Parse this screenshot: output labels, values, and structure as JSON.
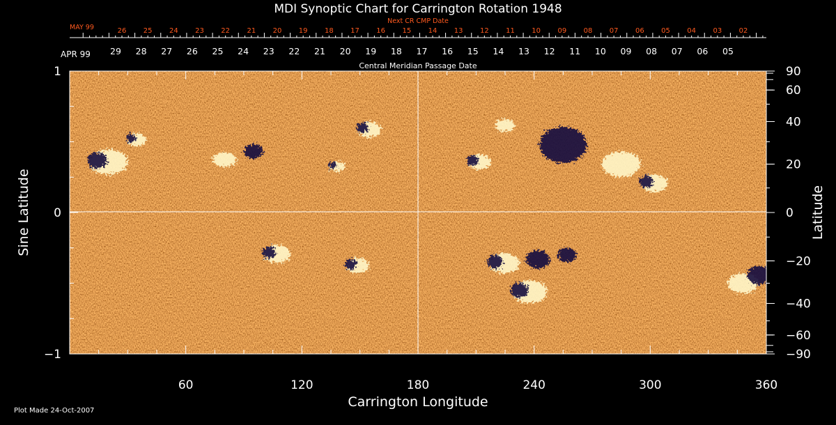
{
  "chart_data": {
    "type": "heatmap",
    "title": "MDI Synoptic Chart for Carrington Rotation 1948",
    "xlabel": "Carrington Longitude",
    "ylabel_left": "Sine Latitude",
    "ylabel_right": "Latitude",
    "footer": "Plot Made 24-Oct-2007",
    "xlim": [
      0,
      360
    ],
    "ylim_sine": [
      -1,
      1
    ],
    "x_ticks": [
      "60",
      "120",
      "180",
      "240",
      "300",
      "360"
    ],
    "x_tick_values": [
      60,
      120,
      180,
      240,
      300,
      360
    ],
    "y_ticks_left": [
      "1",
      "0",
      "−1"
    ],
    "y_tick_values_left": [
      1,
      0,
      -1
    ],
    "y_ticks_right": [
      "90",
      "60",
      "40",
      "20",
      "0",
      "−20",
      "−40",
      "−60",
      "−90"
    ],
    "y_tick_degrees_right": [
      90,
      60,
      40,
      20,
      0,
      -20,
      -40,
      -60,
      -90
    ],
    "next_cr_axis": {
      "title": "Next CR CMP Date",
      "month": "MAY 99",
      "days": [
        "26",
        "25",
        "24",
        "23",
        "22",
        "21",
        "20",
        "19",
        "18",
        "17",
        "16",
        "15",
        "14",
        "13",
        "12",
        "11",
        "10",
        "09",
        "08",
        "07",
        "06",
        "05",
        "04",
        "03",
        "02"
      ],
      "color": "#ff5a1f"
    },
    "cmp_axis": {
      "title": "Central Meridian Passage Date",
      "month": "APR 99",
      "days": [
        "29",
        "28",
        "27",
        "26",
        "25",
        "24",
        "23",
        "22",
        "21",
        "20",
        "19",
        "18",
        "17",
        "16",
        "15",
        "14",
        "13",
        "12",
        "11",
        "10",
        "09",
        "08",
        "07",
        "06",
        "05"
      ],
      "color": "#ffffff"
    },
    "colors": {
      "background": "#000000",
      "field_base": "#e8501a",
      "positive_polarity": "#fff6c8",
      "negative_polarity": "#1a1040",
      "axis": "#ffffff"
    },
    "active_regions": [
      {
        "longitude": 17,
        "latitude": 21,
        "polarity": "mixed",
        "strength": 1.0
      },
      {
        "longitude": 33,
        "latitude": 31,
        "polarity": "mixed",
        "strength": 0.5
      },
      {
        "longitude": 80,
        "latitude": 22,
        "polarity": "positive",
        "strength": 0.6
      },
      {
        "longitude": 95,
        "latitude": 25,
        "polarity": "negative",
        "strength": 0.4
      },
      {
        "longitude": 153,
        "latitude": 36,
        "polarity": "mixed",
        "strength": 0.6
      },
      {
        "longitude": 137,
        "latitude": 19,
        "polarity": "mixed",
        "strength": 0.4
      },
      {
        "longitude": 210,
        "latitude": 21,
        "polarity": "mixed",
        "strength": 0.6
      },
      {
        "longitude": 255,
        "latitude": 28,
        "polarity": "negative",
        "strength": 1.0
      },
      {
        "longitude": 285,
        "latitude": 20,
        "polarity": "positive",
        "strength": 1.0
      },
      {
        "longitude": 300,
        "latitude": 12,
        "polarity": "mixed",
        "strength": 0.7
      },
      {
        "longitude": 225,
        "latitude": 38,
        "polarity": "positive",
        "strength": 0.5
      },
      {
        "longitude": 105,
        "latitude": -17,
        "polarity": "mixed",
        "strength": 0.7
      },
      {
        "longitude": 147,
        "latitude": -22,
        "polarity": "mixed",
        "strength": 0.6
      },
      {
        "longitude": 222,
        "latitude": -21,
        "polarity": "mixed",
        "strength": 0.8
      },
      {
        "longitude": 242,
        "latitude": -20,
        "polarity": "negative",
        "strength": 0.5
      },
      {
        "longitude": 257,
        "latitude": -18,
        "polarity": "negative",
        "strength": 0.4
      },
      {
        "longitude": 235,
        "latitude": -34,
        "polarity": "mixed",
        "strength": 0.9
      },
      {
        "longitude": 348,
        "latitude": -30,
        "polarity": "positive",
        "strength": 0.8
      },
      {
        "longitude": 356,
        "latitude": -27,
        "polarity": "negative",
        "strength": 0.5
      }
    ]
  }
}
